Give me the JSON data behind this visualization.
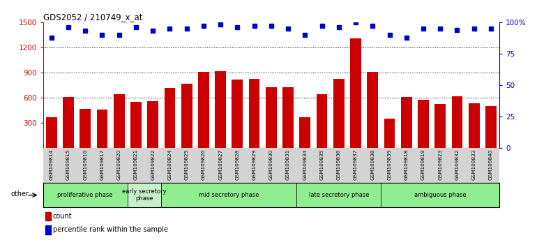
{
  "title": "GDS2052 / 210749_x_at",
  "samples": [
    "GSM109814",
    "GSM109815",
    "GSM109816",
    "GSM109817",
    "GSM109820",
    "GSM109821",
    "GSM109822",
    "GSM109824",
    "GSM109825",
    "GSM109826",
    "GSM109827",
    "GSM109828",
    "GSM109829",
    "GSM109830",
    "GSM109831",
    "GSM109834",
    "GSM109835",
    "GSM109836",
    "GSM109837",
    "GSM109838",
    "GSM109839",
    "GSM109818",
    "GSM109819",
    "GSM109823",
    "GSM109832",
    "GSM109833",
    "GSM109840"
  ],
  "counts": [
    370,
    610,
    470,
    460,
    640,
    555,
    560,
    720,
    770,
    910,
    920,
    820,
    830,
    730,
    730,
    370,
    640,
    830,
    1310,
    910,
    350,
    610,
    575,
    530,
    615,
    535,
    505
  ],
  "bar_color": "#cc0000",
  "percentile_values": [
    88,
    96,
    93,
    90,
    90,
    96,
    93,
    95,
    95,
    97,
    98,
    96,
    97,
    97,
    95,
    90,
    97,
    96,
    100,
    97,
    90,
    88,
    95,
    95,
    94,
    95,
    95
  ],
  "percentile_color": "#0000cc",
  "phase_starts": [
    0,
    5,
    7,
    15,
    20
  ],
  "phase_ends": [
    5,
    7,
    15,
    20,
    27
  ],
  "phase_labels": [
    "proliferative phase",
    "early secretory\nphase",
    "mid secretory phase",
    "late secretory phase",
    "ambiguous phase"
  ],
  "phase_colors": [
    "#90ee90",
    "#c8f0c8",
    "#90ee90",
    "#90ee90",
    "#90ee90"
  ],
  "other_label": "other",
  "legend_count_label": "count",
  "legend_percentile_label": "percentile rank within the sample",
  "tick_area_color": "#d3d3d3"
}
